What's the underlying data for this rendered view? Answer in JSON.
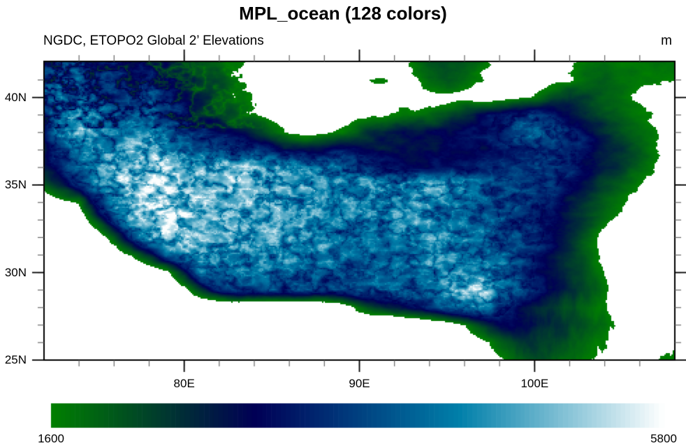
{
  "header": {
    "title": "MPL_ocean (128 colors)",
    "subtitle_left": "NGDC, ETOPO2 Global 2’ Elevations",
    "units_label": "m"
  },
  "chart_data": {
    "type": "heatmap",
    "title": "MPL_ocean (128 colors)",
    "subtitle": "NGDC, ETOPO2 Global 2’ Elevations",
    "units": "m",
    "colormap": {
      "name": "MPL_ocean",
      "n_colors": 128,
      "start_color": "#008000",
      "mid_color": "#000055",
      "upper_mid_color": "#0080aa",
      "end_color": "#ffffff",
      "below_min_color": "#ffffff"
    },
    "colorbar": {
      "min": 1600,
      "max": 5800,
      "min_label": "1600",
      "max_label": "5800"
    },
    "x_axis": {
      "range_deg_east": [
        72,
        108
      ],
      "minor_tick_step_deg": 2,
      "major_ticks": [
        {
          "deg": 80,
          "label": "80E"
        },
        {
          "deg": 90,
          "label": "90E"
        },
        {
          "deg": 100,
          "label": "100E"
        }
      ]
    },
    "y_axis": {
      "range_deg_north": [
        25,
        42.06
      ],
      "minor_tick_step_deg": 1,
      "major_ticks": [
        {
          "deg": 25,
          "label": "25N"
        },
        {
          "deg": 30,
          "label": "30N"
        },
        {
          "deg": 35,
          "label": "35N"
        },
        {
          "deg": 40,
          "label": "40N"
        }
      ]
    },
    "elevation_grid_m": {
      "lon_start": 72,
      "lon_step": 1,
      "lat_start": 42,
      "lat_step": -1,
      "rows": [
        [
          3200,
          3600,
          3800,
          3500,
          3200,
          3000,
          3100,
          2900,
          2500,
          2100,
          1900,
          1700,
          1400,
          1100,
          1000,
          950,
          1000,
          1100,
          1250,
          1400,
          1450,
          1600,
          2000,
          2200,
          2100,
          1800,
          1300,
          1150,
          1250,
          1350,
          1500,
          1700,
          1800,
          1700,
          1750,
          1900,
          1850
        ],
        [
          3800,
          4200,
          4000,
          3600,
          3400,
          3300,
          3500,
          3200,
          2800,
          2400,
          2200,
          1900,
          1500,
          1200,
          1050,
          1000,
          1150,
          1300,
          1500,
          1600,
          1500,
          1500,
          1900,
          2100,
          2000,
          1600,
          1200,
          1100,
          1200,
          1400,
          1600,
          1900,
          2000,
          1800,
          1600,
          1650,
          1600
        ],
        [
          4000,
          4300,
          4100,
          3700,
          3500,
          3600,
          3800,
          3400,
          3000,
          2600,
          2300,
          2000,
          1600,
          1250,
          1100,
          1050,
          1100,
          1250,
          1400,
          1500,
          1400,
          1300,
          1400,
          1500,
          1400,
          1200,
          1250,
          1400,
          1700,
          2100,
          2400,
          2300,
          2000,
          1750,
          1550,
          1450,
          1350
        ],
        [
          3400,
          4400,
          4600,
          4200,
          3800,
          3900,
          4000,
          3600,
          3200,
          2800,
          2400,
          2100,
          1700,
          1350,
          1150,
          1100,
          1150,
          1250,
          1400,
          1550,
          1650,
          1750,
          1900,
          2100,
          2500,
          2900,
          3300,
          3600,
          3500,
          3100,
          2800,
          2500,
          2200,
          1950,
          1700,
          1450,
          1300
        ],
        [
          3000,
          4600,
          4800,
          4500,
          4200,
          4300,
          4400,
          4000,
          3600,
          3300,
          3100,
          2900,
          2500,
          2000,
          1550,
          1350,
          1450,
          1700,
          2200,
          2600,
          2750,
          2800,
          2850,
          2900,
          3000,
          3100,
          3400,
          3900,
          4200,
          3900,
          3400,
          2950,
          2550,
          2250,
          1950,
          1600,
          1350
        ],
        [
          2600,
          3800,
          4400,
          4500,
          4600,
          4700,
          4900,
          4600,
          4200,
          3900,
          3800,
          3700,
          3500,
          3150,
          2900,
          2700,
          2900,
          3100,
          2950,
          2850,
          2800,
          2780,
          2800,
          2820,
          2850,
          2900,
          3000,
          3150,
          3350,
          3400,
          3300,
          3050,
          2700,
          2350,
          2000,
          1600,
          1300
        ],
        [
          2800,
          3200,
          4000,
          4600,
          4800,
          5000,
          5100,
          5000,
          4900,
          4800,
          4900,
          4900,
          4800,
          4700,
          4500,
          4300,
          4200,
          4000,
          3700,
          3300,
          3000,
          2900,
          2900,
          3000,
          3100,
          3200,
          3300,
          3400,
          3500,
          3450,
          3300,
          3050,
          2700,
          2300,
          1950,
          1550,
          1250
        ],
        [
          2000,
          2600,
          3400,
          4300,
          4800,
          5100,
          5300,
          5200,
          5100,
          5000,
          5000,
          5000,
          4900,
          4800,
          4700,
          4600,
          4500,
          4400,
          4450,
          4550,
          4650,
          4750,
          4700,
          4550,
          4300,
          4000,
          3800,
          3650,
          3500,
          3300,
          3000,
          2600,
          2200,
          1900,
          1600,
          1400,
          1250
        ],
        [
          900,
          1400,
          1700,
          3400,
          4500,
          5000,
          5200,
          5100,
          5000,
          4900,
          4900,
          4900,
          4800,
          4700,
          4600,
          4500,
          4400,
          4300,
          4350,
          4400,
          4500,
          4600,
          4550,
          4350,
          4100,
          3900,
          3750,
          3600,
          3450,
          3200,
          2800,
          2400,
          2000,
          1650,
          1350,
          1150,
          1050
        ],
        [
          600,
          800,
          1100,
          2200,
          3600,
          4600,
          5100,
          5200,
          5000,
          4800,
          4800,
          4800,
          4700,
          4700,
          4600,
          4500,
          4400,
          4300,
          4250,
          4250,
          4300,
          4400,
          4450,
          4300,
          4100,
          3950,
          3800,
          3600,
          3400,
          3100,
          2700,
          2250,
          1800,
          1400,
          1100,
          950,
          850
        ],
        [
          450,
          550,
          700,
          1100,
          2000,
          3300,
          4500,
          5000,
          4900,
          4700,
          4700,
          4700,
          4600,
          4600,
          4500,
          4400,
          4300,
          4200,
          4150,
          4150,
          4200,
          4300,
          4350,
          4300,
          4200,
          4050,
          3900,
          3700,
          3400,
          3000,
          2500,
          2000,
          1300,
          750,
          550,
          550,
          650
        ],
        [
          350,
          420,
          520,
          700,
          1100,
          1700,
          2600,
          3800,
          4600,
          4600,
          4500,
          4500,
          4500,
          4400,
          4400,
          4300,
          4200,
          4100,
          4050,
          4050,
          4100,
          4200,
          4300,
          4350,
          4300,
          4200,
          4000,
          3600,
          3200,
          2800,
          2400,
          1950,
          1350,
          650,
          450,
          420,
          520
        ],
        [
          280,
          330,
          400,
          480,
          550,
          700,
          900,
          1300,
          2600,
          4000,
          4300,
          4300,
          4300,
          4250,
          4200,
          4100,
          4000,
          3950,
          3900,
          3900,
          3950,
          4100,
          4300,
          4450,
          4600,
          4500,
          4100,
          3600,
          3150,
          2750,
          2400,
          2050,
          1550,
          850,
          550,
          520,
          620
        ],
        [
          230,
          270,
          320,
          380,
          470,
          650,
          800,
          1000,
          1400,
          2400,
          3300,
          3600,
          3700,
          3650,
          3600,
          3650,
          3700,
          3750,
          3800,
          3850,
          3950,
          4100,
          4300,
          4600,
          4900,
          5100,
          4500,
          3800,
          3300,
          2900,
          2550,
          2200,
          1750,
          1150,
          750,
          720,
          900
        ],
        [
          200,
          230,
          270,
          310,
          370,
          450,
          550,
          600,
          650,
          700,
          700,
          650,
          600,
          550,
          550,
          600,
          700,
          1100,
          1800,
          2400,
          2800,
          3100,
          3400,
          3800,
          4200,
          4100,
          3500,
          3000,
          2600,
          2300,
          2100,
          1900,
          1600,
          1200,
          900,
          1000,
          1200
        ],
        [
          180,
          200,
          230,
          260,
          300,
          340,
          380,
          400,
          430,
          440,
          420,
          400,
          380,
          360,
          340,
          500,
          1300,
          1600,
          1100,
          600,
          500,
          600,
          800,
          1100,
          1600,
          2400,
          2900,
          3000,
          2800,
          2500,
          2300,
          2100,
          1800,
          1500,
          1200,
          1300,
          1500
        ],
        [
          160,
          180,
          200,
          230,
          260,
          290,
          320,
          340,
          360,
          370,
          360,
          340,
          320,
          310,
          300,
          350,
          600,
          800,
          600,
          420,
          400,
          450,
          550,
          750,
          1000,
          1400,
          1900,
          2300,
          2400,
          2250,
          2050,
          1850,
          1600,
          1350,
          1200,
          1350,
          1550
        ],
        [
          150,
          160,
          180,
          200,
          230,
          260,
          290,
          310,
          330,
          340,
          330,
          320,
          310,
          300,
          300,
          330,
          420,
          520,
          450,
          380,
          380,
          420,
          520,
          680,
          900,
          1200,
          1500,
          1900,
          2150,
          2050,
          1850,
          1700,
          1500,
          1400,
          1450,
          1600,
          1750
        ]
      ]
    }
  }
}
